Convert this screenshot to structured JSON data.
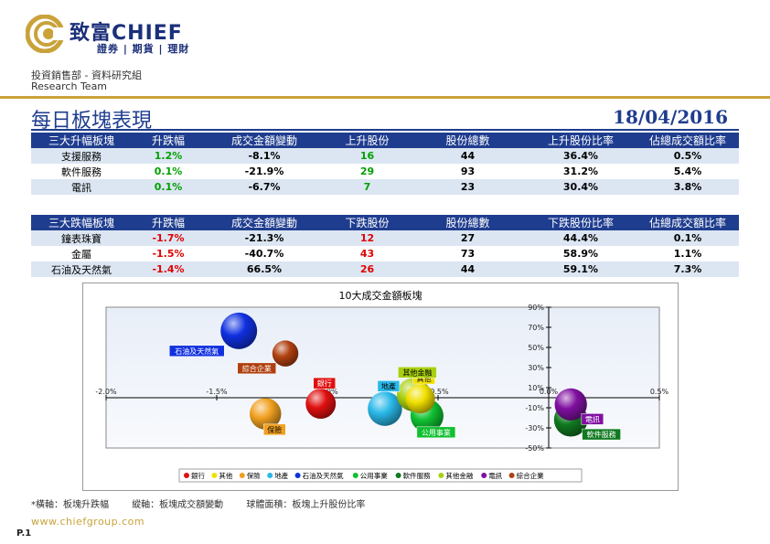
{
  "header": {
    "brand_cn": "致富",
    "brand_en": "CHIEF",
    "brand_sub": "證券 | 期貨 | 理財",
    "department": "投資銷售部 - 資料研究組",
    "team": "Research Team",
    "title": "每日板塊表現",
    "date": "18/04/2016"
  },
  "gainers_table": {
    "headers": [
      "三大升幅板塊",
      "升跌幅",
      "成交金額變動",
      "上升股份",
      "股份總數",
      "上升股份比率",
      "佔總成交額比率"
    ],
    "rows": [
      [
        "支援服務",
        "1.2%",
        "-8.1%",
        "16",
        "44",
        "36.4%",
        "0.5%"
      ],
      [
        "軟件服務",
        "0.1%",
        "-21.9%",
        "29",
        "93",
        "31.2%",
        "5.4%"
      ],
      [
        "電訊",
        "0.1%",
        "-6.7%",
        "7",
        "23",
        "30.4%",
        "3.8%"
      ]
    ]
  },
  "losers_table": {
    "headers": [
      "三大跌幅板塊",
      "升跌幅",
      "成交金額變動",
      "下跌股份",
      "股份總數",
      "下跌股份比率",
      "佔總成交額比率"
    ],
    "rows": [
      [
        "鐘表珠寶",
        "-1.7%",
        "-21.3%",
        "12",
        "27",
        "44.4%",
        "0.1%"
      ],
      [
        "金屬",
        "-1.5%",
        "-40.7%",
        "43",
        "73",
        "58.9%",
        "1.1%"
      ],
      [
        "石油及天然氣",
        "-1.4%",
        "66.5%",
        "26",
        "44",
        "59.1%",
        "7.3%"
      ]
    ]
  },
  "chart_data": {
    "type": "scatter",
    "title": "10大成交金額板塊",
    "xlim": [
      -2.0,
      0.5
    ],
    "ylim": [
      -50,
      90
    ],
    "x_ticks": [
      "-2.0%",
      "-1.5%",
      "-1.0%",
      "-0.5%",
      "0.0%",
      "0.5%"
    ],
    "y_ticks": [
      "90%",
      "70%",
      "50%",
      "30%",
      "10%",
      "-10%",
      "-30%",
      "-50%"
    ],
    "series": [
      {
        "name": "銀行",
        "x": -1.03,
        "y": -6,
        "size": 40,
        "color": "#e01010"
      },
      {
        "name": "其他",
        "x": -0.58,
        "y": -1,
        "size": 38,
        "color": "#f0e000"
      },
      {
        "name": "保險",
        "x": -1.28,
        "y": -16,
        "size": 44,
        "color": "#f0a020"
      },
      {
        "name": "地產",
        "x": -0.74,
        "y": -11,
        "size": 52,
        "color": "#2ab8e8"
      },
      {
        "name": "石油及天然氣",
        "x": -1.4,
        "y": 66.5,
        "size": 59,
        "color": "#1030e0"
      },
      {
        "name": "公用事業",
        "x": -0.55,
        "y": -18,
        "size": 48,
        "color": "#10c030"
      },
      {
        "name": "軟件服務",
        "x": 0.1,
        "y": -21.9,
        "size": 50,
        "color": "#107a20"
      },
      {
        "name": "其他金融",
        "x": -0.61,
        "y": 3,
        "size": 50,
        "color": "#a8d010"
      },
      {
        "name": "電訊",
        "x": 0.1,
        "y": -6.7,
        "size": 46,
        "color": "#8010a0"
      },
      {
        "name": "綜合企業",
        "x": -1.19,
        "y": 44,
        "size": 30,
        "color": "#b04010"
      }
    ]
  },
  "footnote": {
    "x_axis": "*橫軸：板塊升跌幅",
    "y_axis": "縱軸：板塊成交額變動",
    "bubble": "球體面積：板塊上升股份比率"
  },
  "website": "www.chiefgroup.com",
  "page_no": "P.1"
}
